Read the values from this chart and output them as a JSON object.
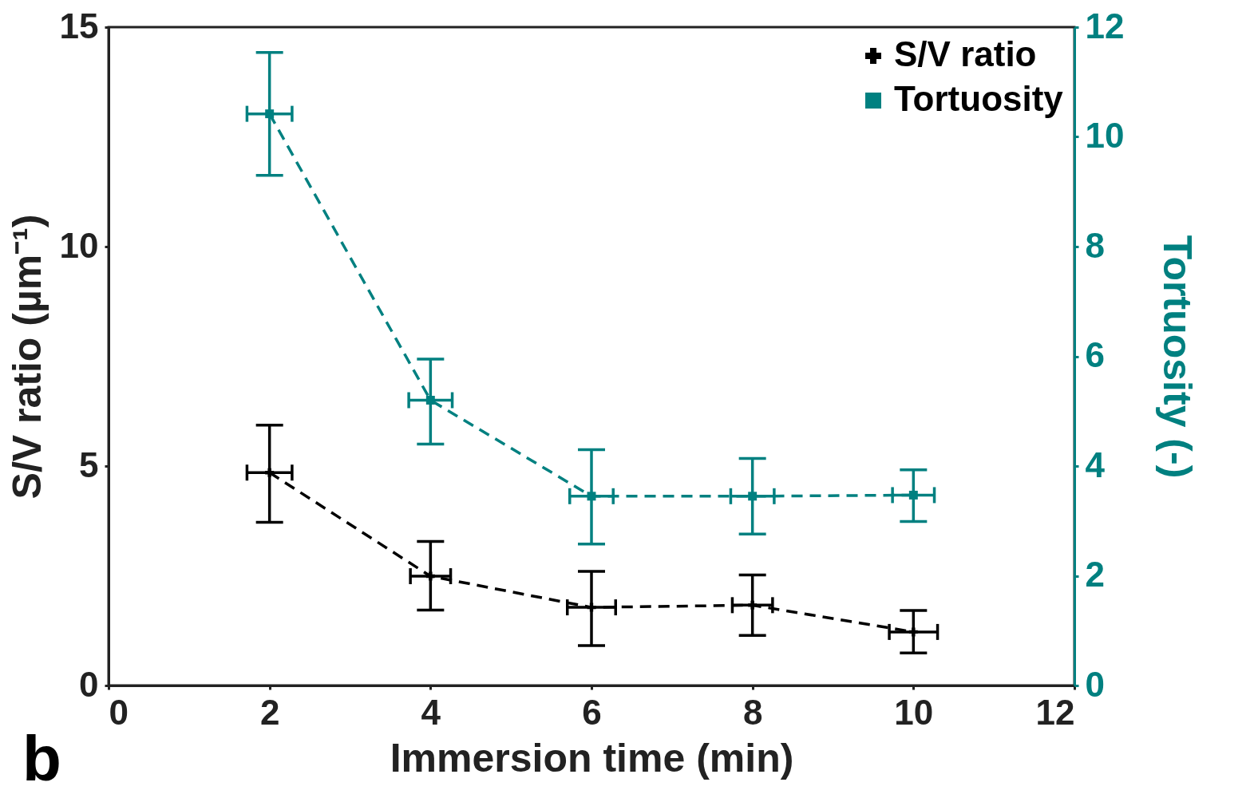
{
  "chart_data": {
    "type": "line",
    "xlabel": "Immersion time (min)",
    "ylabel": "S/V ratio (µm⁻¹)",
    "y2label": "Tortuosity (-)",
    "annotations": [
      "b"
    ],
    "x": [
      2,
      4,
      6,
      8,
      10
    ],
    "xlim": [
      0,
      12
    ],
    "xticks": [
      0,
      2,
      4,
      6,
      8,
      10,
      12
    ],
    "ylim": [
      0,
      15
    ],
    "yticks": [
      0,
      5,
      10,
      15
    ],
    "y2lim": [
      0,
      12
    ],
    "y2ticks": [
      0,
      2,
      4,
      6,
      8,
      10,
      12
    ],
    "legend": "top right",
    "grid": false,
    "series": [
      {
        "name": "S/V ratio",
        "color": "#000000",
        "marker": "cross",
        "line_style": "dashed",
        "values": [
          4.85,
          2.49,
          1.78,
          1.83,
          1.22
        ],
        "errors": [
          [
            3.72,
            5.93
          ],
          [
            1.72,
            3.28
          ],
          [
            0.91,
            2.6
          ],
          [
            1.14,
            2.52
          ],
          [
            0.74,
            1.71
          ]
        ],
        "xerrors": [
          0.28,
          0.25,
          0.3,
          0.25,
          0.3
        ]
      },
      {
        "name": "Tortuosity",
        "color": "#008080",
        "marker": "square",
        "line_style": "dashed",
        "axis": "y2",
        "values": [
          10.42,
          5.2,
          3.45,
          3.45,
          3.47
        ],
        "errors": [
          [
            9.3,
            11.54
          ],
          [
            4.4,
            5.95
          ],
          [
            2.58,
            4.3
          ],
          [
            2.76,
            4.14
          ],
          [
            2.99,
            3.93
          ]
        ],
        "xerrors": [
          0.28,
          0.27,
          0.27,
          0.27,
          0.26
        ]
      }
    ]
  }
}
